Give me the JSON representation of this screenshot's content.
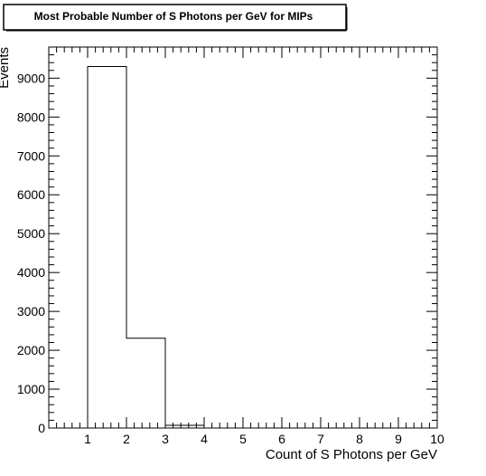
{
  "chart_data": {
    "type": "bar",
    "title": "Most Probable Number of S Photons per GeV for MIPs",
    "xlabel": "Count of S Photons per GeV",
    "ylabel": "Events",
    "xlim": [
      0,
      10
    ],
    "ylim": [
      0,
      9800
    ],
    "x_ticks": [
      1,
      2,
      3,
      4,
      5,
      6,
      7,
      8,
      9,
      10
    ],
    "y_ticks": [
      0,
      1000,
      2000,
      3000,
      4000,
      5000,
      6000,
      7000,
      8000,
      9000
    ],
    "bins": [
      {
        "low": 1,
        "high": 2,
        "value": 9300
      },
      {
        "low": 2,
        "high": 3,
        "value": 2310
      },
      {
        "low": 3,
        "high": 4,
        "value": 70
      }
    ],
    "grid": false,
    "legend": "none",
    "line_color": "#000000",
    "frame_color": "#000000"
  }
}
